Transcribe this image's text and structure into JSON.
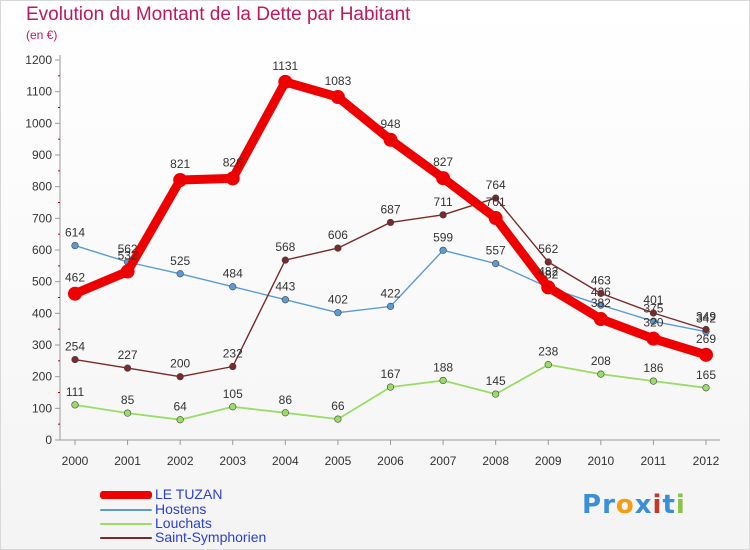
{
  "chart_data": {
    "type": "line",
    "title": "Evolution du Montant de la Dette par Habitant",
    "subtitle": "(en €)",
    "x": [
      "2000",
      "2001",
      "2002",
      "2003",
      "2004",
      "2005",
      "2006",
      "2007",
      "2008",
      "2009",
      "2010",
      "2011",
      "2012"
    ],
    "ylim": [
      0,
      1200
    ],
    "yticks": [
      0,
      100,
      200,
      300,
      400,
      500,
      600,
      700,
      800,
      900,
      1000,
      1100,
      1200
    ],
    "grid": false,
    "legend_position": "bottom-left",
    "series": [
      {
        "name": "LE TUZAN",
        "color": "#ee0000",
        "values": [
          462,
          532,
          821,
          826,
          1131,
          1083,
          948,
          827,
          701,
          482,
          382,
          320,
          269
        ]
      },
      {
        "name": "Hostens",
        "color": "#5b9bd5",
        "values": [
          614,
          562,
          525,
          484,
          443,
          402,
          422,
          599,
          557,
          482,
          426,
          375,
          342
        ]
      },
      {
        "name": "Louchats",
        "color": "#99dd66",
        "values": [
          111,
          85,
          64,
          105,
          86,
          66,
          167,
          188,
          145,
          238,
          208,
          186,
          165
        ]
      },
      {
        "name": "Saint-Symphorien",
        "color": "#7a2a2a",
        "values": [
          254,
          227,
          200,
          232,
          568,
          606,
          687,
          711,
          764,
          562,
          463,
          401,
          349
        ]
      }
    ]
  },
  "logo": {
    "letters": [
      "P",
      "r",
      "o",
      "x",
      "i",
      "t",
      "i"
    ],
    "colors": [
      "#3b8fd9",
      "#3b8fd9",
      "#f39c12",
      "#3b8fd9",
      "#c0392b",
      "#3b8fd9",
      "#8bc34a"
    ]
  }
}
